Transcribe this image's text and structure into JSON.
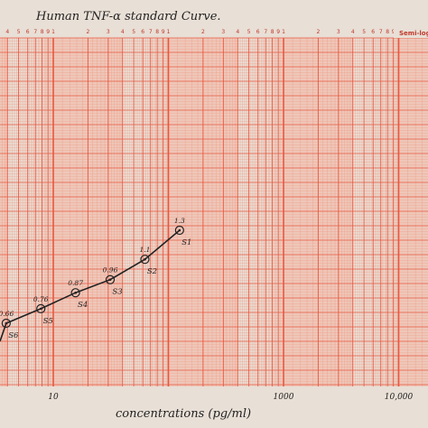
{
  "chart_data": {
    "type": "line",
    "title": "Human TNF-α standard Curve.",
    "paper_label": "Semi-log",
    "xlabel": "concentrations (pg/ml)",
    "ylabel": "",
    "xscale": "log",
    "x_tick_labels": [
      {
        "value": 10,
        "label": "10"
      },
      {
        "value": 1000,
        "label": "1000"
      },
      {
        "value": 10000,
        "label": "10,000"
      }
    ],
    "top_cycle_digits": [
      "2",
      "3",
      "4",
      "5",
      "6",
      "7",
      "8",
      "9",
      "1"
    ],
    "colors": {
      "grid_major": "#e8573f",
      "grid_minor": "#f0a08c",
      "band": "#f3b3a3",
      "ink": "#222222"
    },
    "points": [
      {
        "x": 3.9,
        "y": 0.66,
        "value_label": "0.66",
        "std_label": "S6"
      },
      {
        "x": 7.8,
        "y": 0.76,
        "value_label": "0.76",
        "std_label": "S5"
      },
      {
        "x": 15.6,
        "y": 0.87,
        "value_label": "0.87",
        "std_label": "S4"
      },
      {
        "x": 31.2,
        "y": 0.96,
        "value_label": "0.96",
        "std_label": "S3"
      },
      {
        "x": 62.5,
        "y": 1.1,
        "value_label": "1.1",
        "std_label": "S2"
      },
      {
        "x": 125,
        "y": 1.3,
        "value_label": "1.3",
        "std_label": "S1"
      }
    ]
  }
}
